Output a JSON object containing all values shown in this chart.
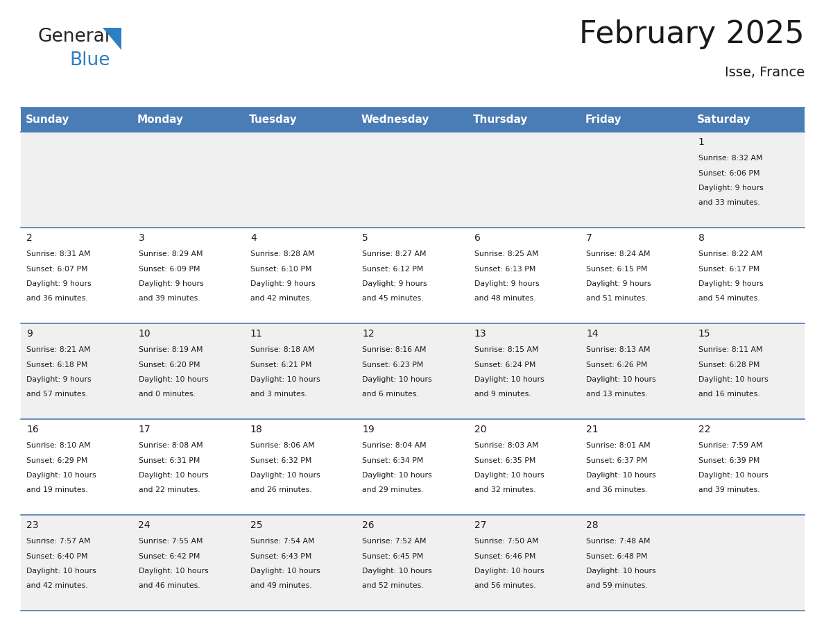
{
  "title": "February 2025",
  "subtitle": "Isse, France",
  "header_color": "#4a7cb5",
  "header_text_color": "#ffffff",
  "cell_bg_white": "#ffffff",
  "cell_bg_gray": "#f0f0f0",
  "border_color": "#4a7cb5",
  "day_headers": [
    "Sunday",
    "Monday",
    "Tuesday",
    "Wednesday",
    "Thursday",
    "Friday",
    "Saturday"
  ],
  "days": [
    {
      "day": 1,
      "col": 6,
      "row": 0,
      "sunrise": "8:32 AM",
      "sunset": "6:06 PM",
      "daylight_h": "9 hours",
      "daylight_m": "33 minutes."
    },
    {
      "day": 2,
      "col": 0,
      "row": 1,
      "sunrise": "8:31 AM",
      "sunset": "6:07 PM",
      "daylight_h": "9 hours",
      "daylight_m": "36 minutes."
    },
    {
      "day": 3,
      "col": 1,
      "row": 1,
      "sunrise": "8:29 AM",
      "sunset": "6:09 PM",
      "daylight_h": "9 hours",
      "daylight_m": "39 minutes."
    },
    {
      "day": 4,
      "col": 2,
      "row": 1,
      "sunrise": "8:28 AM",
      "sunset": "6:10 PM",
      "daylight_h": "9 hours",
      "daylight_m": "42 minutes."
    },
    {
      "day": 5,
      "col": 3,
      "row": 1,
      "sunrise": "8:27 AM",
      "sunset": "6:12 PM",
      "daylight_h": "9 hours",
      "daylight_m": "45 minutes."
    },
    {
      "day": 6,
      "col": 4,
      "row": 1,
      "sunrise": "8:25 AM",
      "sunset": "6:13 PM",
      "daylight_h": "9 hours",
      "daylight_m": "48 minutes."
    },
    {
      "day": 7,
      "col": 5,
      "row": 1,
      "sunrise": "8:24 AM",
      "sunset": "6:15 PM",
      "daylight_h": "9 hours",
      "daylight_m": "51 minutes."
    },
    {
      "day": 8,
      "col": 6,
      "row": 1,
      "sunrise": "8:22 AM",
      "sunset": "6:17 PM",
      "daylight_h": "9 hours",
      "daylight_m": "54 minutes."
    },
    {
      "day": 9,
      "col": 0,
      "row": 2,
      "sunrise": "8:21 AM",
      "sunset": "6:18 PM",
      "daylight_h": "9 hours",
      "daylight_m": "57 minutes."
    },
    {
      "day": 10,
      "col": 1,
      "row": 2,
      "sunrise": "8:19 AM",
      "sunset": "6:20 PM",
      "daylight_h": "10 hours",
      "daylight_m": "0 minutes."
    },
    {
      "day": 11,
      "col": 2,
      "row": 2,
      "sunrise": "8:18 AM",
      "sunset": "6:21 PM",
      "daylight_h": "10 hours",
      "daylight_m": "3 minutes."
    },
    {
      "day": 12,
      "col": 3,
      "row": 2,
      "sunrise": "8:16 AM",
      "sunset": "6:23 PM",
      "daylight_h": "10 hours",
      "daylight_m": "6 minutes."
    },
    {
      "day": 13,
      "col": 4,
      "row": 2,
      "sunrise": "8:15 AM",
      "sunset": "6:24 PM",
      "daylight_h": "10 hours",
      "daylight_m": "9 minutes."
    },
    {
      "day": 14,
      "col": 5,
      "row": 2,
      "sunrise": "8:13 AM",
      "sunset": "6:26 PM",
      "daylight_h": "10 hours",
      "daylight_m": "13 minutes."
    },
    {
      "day": 15,
      "col": 6,
      "row": 2,
      "sunrise": "8:11 AM",
      "sunset": "6:28 PM",
      "daylight_h": "10 hours",
      "daylight_m": "16 minutes."
    },
    {
      "day": 16,
      "col": 0,
      "row": 3,
      "sunrise": "8:10 AM",
      "sunset": "6:29 PM",
      "daylight_h": "10 hours",
      "daylight_m": "19 minutes."
    },
    {
      "day": 17,
      "col": 1,
      "row": 3,
      "sunrise": "8:08 AM",
      "sunset": "6:31 PM",
      "daylight_h": "10 hours",
      "daylight_m": "22 minutes."
    },
    {
      "day": 18,
      "col": 2,
      "row": 3,
      "sunrise": "8:06 AM",
      "sunset": "6:32 PM",
      "daylight_h": "10 hours",
      "daylight_m": "26 minutes."
    },
    {
      "day": 19,
      "col": 3,
      "row": 3,
      "sunrise": "8:04 AM",
      "sunset": "6:34 PM",
      "daylight_h": "10 hours",
      "daylight_m": "29 minutes."
    },
    {
      "day": 20,
      "col": 4,
      "row": 3,
      "sunrise": "8:03 AM",
      "sunset": "6:35 PM",
      "daylight_h": "10 hours",
      "daylight_m": "32 minutes."
    },
    {
      "day": 21,
      "col": 5,
      "row": 3,
      "sunrise": "8:01 AM",
      "sunset": "6:37 PM",
      "daylight_h": "10 hours",
      "daylight_m": "36 minutes."
    },
    {
      "day": 22,
      "col": 6,
      "row": 3,
      "sunrise": "7:59 AM",
      "sunset": "6:39 PM",
      "daylight_h": "10 hours",
      "daylight_m": "39 minutes."
    },
    {
      "day": 23,
      "col": 0,
      "row": 4,
      "sunrise": "7:57 AM",
      "sunset": "6:40 PM",
      "daylight_h": "10 hours",
      "daylight_m": "42 minutes."
    },
    {
      "day": 24,
      "col": 1,
      "row": 4,
      "sunrise": "7:55 AM",
      "sunset": "6:42 PM",
      "daylight_h": "10 hours",
      "daylight_m": "46 minutes."
    },
    {
      "day": 25,
      "col": 2,
      "row": 4,
      "sunrise": "7:54 AM",
      "sunset": "6:43 PM",
      "daylight_h": "10 hours",
      "daylight_m": "49 minutes."
    },
    {
      "day": 26,
      "col": 3,
      "row": 4,
      "sunrise": "7:52 AM",
      "sunset": "6:45 PM",
      "daylight_h": "10 hours",
      "daylight_m": "52 minutes."
    },
    {
      "day": 27,
      "col": 4,
      "row": 4,
      "sunrise": "7:50 AM",
      "sunset": "6:46 PM",
      "daylight_h": "10 hours",
      "daylight_m": "56 minutes."
    },
    {
      "day": 28,
      "col": 5,
      "row": 4,
      "sunrise": "7:48 AM",
      "sunset": "6:48 PM",
      "daylight_h": "10 hours",
      "daylight_m": "59 minutes."
    }
  ],
  "num_rows": 5,
  "num_cols": 7,
  "title_fontsize": 32,
  "subtitle_fontsize": 14,
  "header_fontsize": 11,
  "day_num_fontsize": 10,
  "cell_text_fontsize": 7.8
}
